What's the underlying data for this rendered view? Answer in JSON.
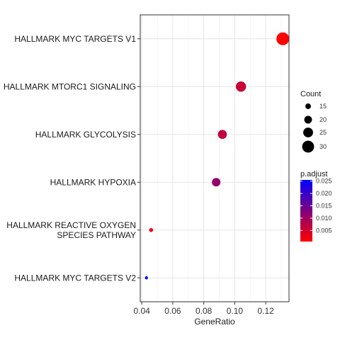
{
  "chart_data": {
    "type": "scatter",
    "xlabel": "GeneRatio",
    "ylabel": "",
    "title": "",
    "xlim": [
      0.039,
      0.135
    ],
    "xticks": [
      0.04,
      0.06,
      0.08,
      0.1,
      0.12
    ],
    "xtick_labels": [
      "0.04",
      "0.06",
      "0.08",
      "0.10",
      "0.12"
    ],
    "grid": true,
    "categories": [
      "HALLMARK MYC TARGETS V1",
      "HALLMARK MTORC1 SIGNALING",
      "HALLMARK GLYCOLYSIS",
      "HALLMARK HYPOXIA",
      "HALLMARK REACTIVE OXYGEN SPECIES PATHWAY",
      "HALLMARK MYC TARGETS V2"
    ],
    "category_lines": [
      [
        "HALLMARK MYC TARGETS V1"
      ],
      [
        "HALLMARK MTORC1 SIGNALING"
      ],
      [
        "HALLMARK GLYCOLYSIS"
      ],
      [
        "HALLMARK HYPOXIA"
      ],
      [
        "HALLMARK REACTIVE OXYGEN",
        "SPECIES PATHWAY"
      ],
      [
        "HALLMARK MYC TARGETS V2"
      ]
    ],
    "points": [
      {
        "category": "HALLMARK MYC TARGETS V1",
        "gene_ratio": 0.131,
        "count": 32,
        "p_adjust": 0.0005
      },
      {
        "category": "HALLMARK MTORC1 SIGNALING",
        "gene_ratio": 0.104,
        "count": 26,
        "p_adjust": 0.006
      },
      {
        "category": "HALLMARK GLYCOLYSIS",
        "gene_ratio": 0.092,
        "count": 23,
        "p_adjust": 0.0065
      },
      {
        "category": "HALLMARK HYPOXIA",
        "gene_ratio": 0.088,
        "count": 22,
        "p_adjust": 0.011
      },
      {
        "category": "HALLMARK REACTIVE OXYGEN SPECIES PATHWAY",
        "gene_ratio": 0.046,
        "count": 11,
        "p_adjust": 0.002
      },
      {
        "category": "HALLMARK MYC TARGETS V2",
        "gene_ratio": 0.043,
        "count": 9,
        "p_adjust": 0.0255
      }
    ],
    "size_legend": {
      "title": "Count",
      "values": [
        15,
        20,
        25,
        30
      ],
      "labels": [
        "15",
        "20",
        "25",
        "30"
      ]
    },
    "color_legend": {
      "title": "p.adjust",
      "range": [
        0.0005,
        0.0255
      ],
      "ticks": [
        0.005,
        0.01,
        0.015,
        0.02,
        0.025
      ],
      "tick_labels": [
        "0.005",
        "0.010",
        "0.015",
        "0.020",
        "0.025"
      ],
      "low_color": "#ff0000",
      "high_color": "#0000ff"
    },
    "legend_placement": "right"
  }
}
